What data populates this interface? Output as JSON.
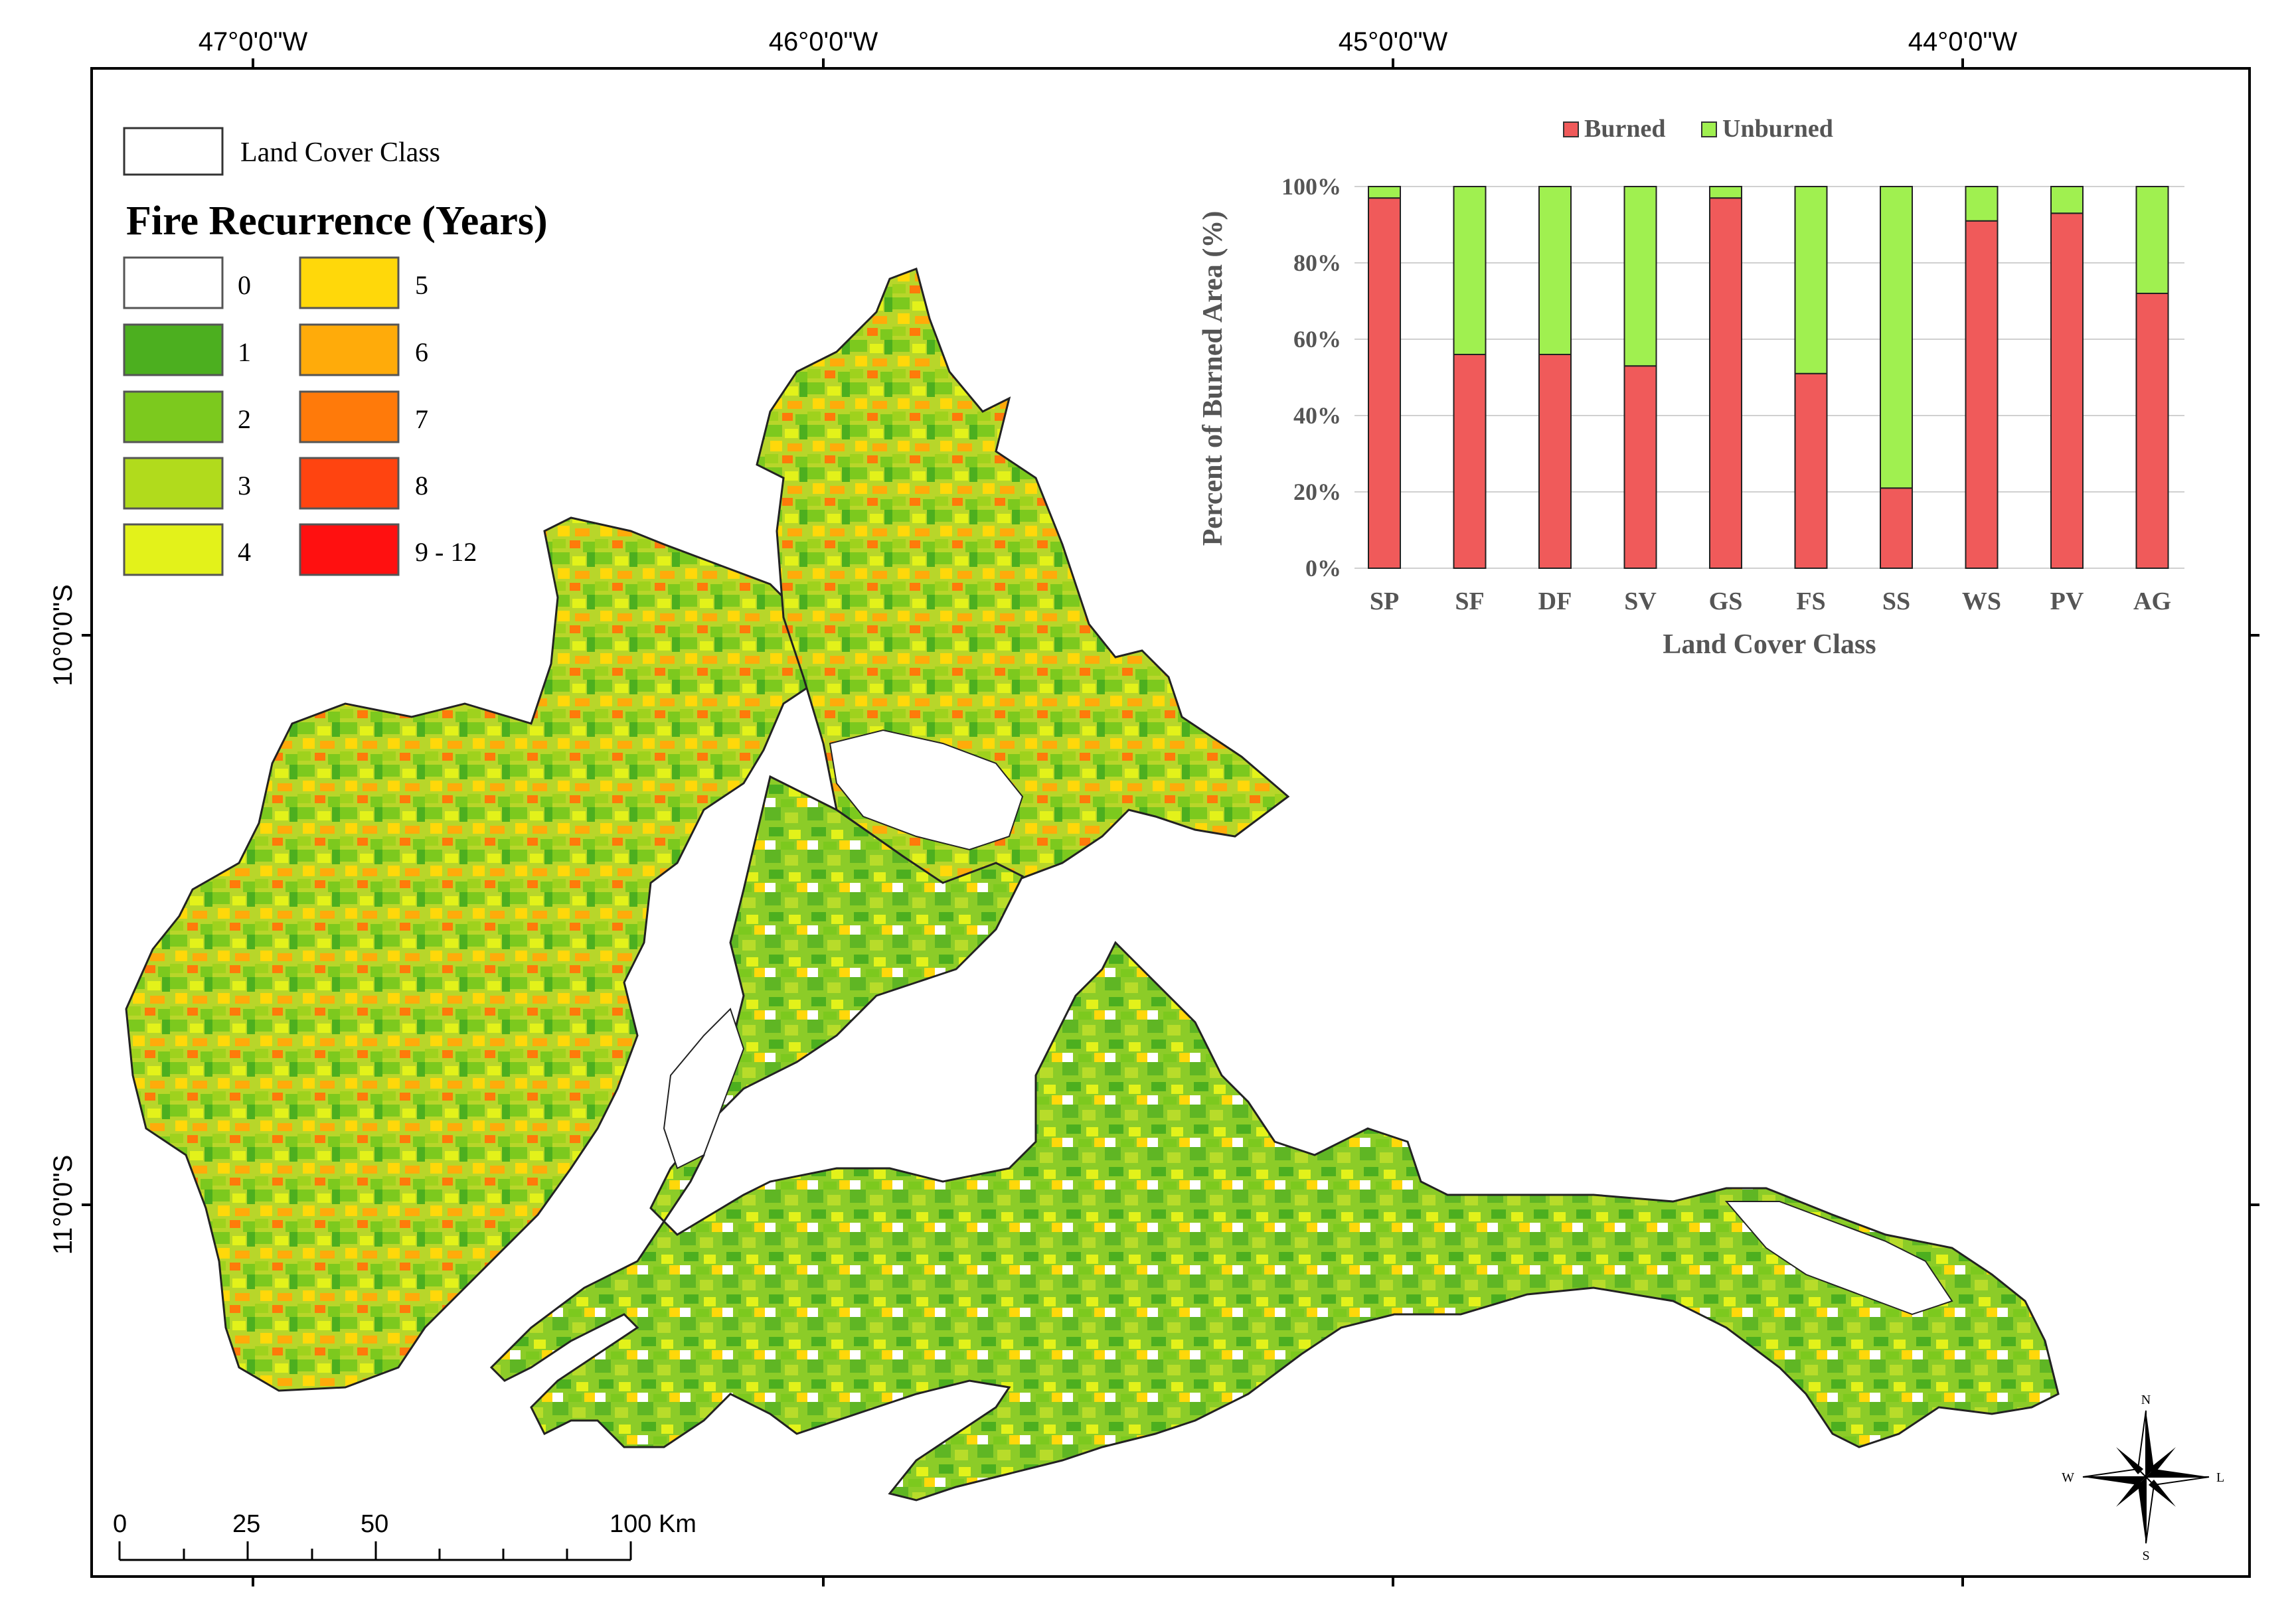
{
  "coordinates": {
    "top_labels": [
      "47°0'0\"W",
      "46°0'0\"W",
      "45°0'0\"W",
      "44°0'0\"W"
    ],
    "left_labels": [
      "10°0'0\"S",
      "11°0'0\"S"
    ]
  },
  "legend": {
    "land_cover_label": "Land Cover Class",
    "title": "Fire Recurrence (Years)",
    "classes": [
      {
        "label": "0",
        "color": "#ffffff"
      },
      {
        "label": "1",
        "color": "#4caf1f"
      },
      {
        "label": "2",
        "color": "#7cc91e"
      },
      {
        "label": "3",
        "color": "#b1db1c"
      },
      {
        "label": "4",
        "color": "#e3f21a"
      },
      {
        "label": "5",
        "color": "#ffd80a"
      },
      {
        "label": "6",
        "color": "#ffab0a"
      },
      {
        "label": "7",
        "color": "#ff7a0a"
      },
      {
        "label": "8",
        "color": "#ff4410"
      },
      {
        "label": "9 - 12",
        "color": "#ff1010"
      }
    ]
  },
  "scale_bar": {
    "ticks": [
      "0",
      "25",
      "50",
      "100 Km"
    ]
  },
  "north_arrow": {
    "n": "N",
    "s": "S",
    "w": "W",
    "e": "L"
  },
  "chart_data": {
    "type": "bar",
    "stacked": true,
    "categories": [
      "SP",
      "SF",
      "DF",
      "SV",
      "GS",
      "FS",
      "SS",
      "WS",
      "PV",
      "AG"
    ],
    "series": [
      {
        "name": "Burned",
        "color": "#f05a5a",
        "values": [
          97,
          56,
          56,
          53,
          97,
          51,
          21,
          91,
          93,
          72
        ]
      },
      {
        "name": "Unburned",
        "color": "#a0f050",
        "values": [
          3,
          44,
          44,
          47,
          3,
          49,
          79,
          9,
          7,
          28
        ]
      }
    ],
    "ylabel": "Percent of Burned Area (%)",
    "xlabel": "Land Cover Class",
    "yticks": [
      "0%",
      "20%",
      "40%",
      "60%",
      "80%",
      "100%"
    ],
    "ylim": [
      0,
      100
    ],
    "legend_position": "top",
    "grid": true
  }
}
